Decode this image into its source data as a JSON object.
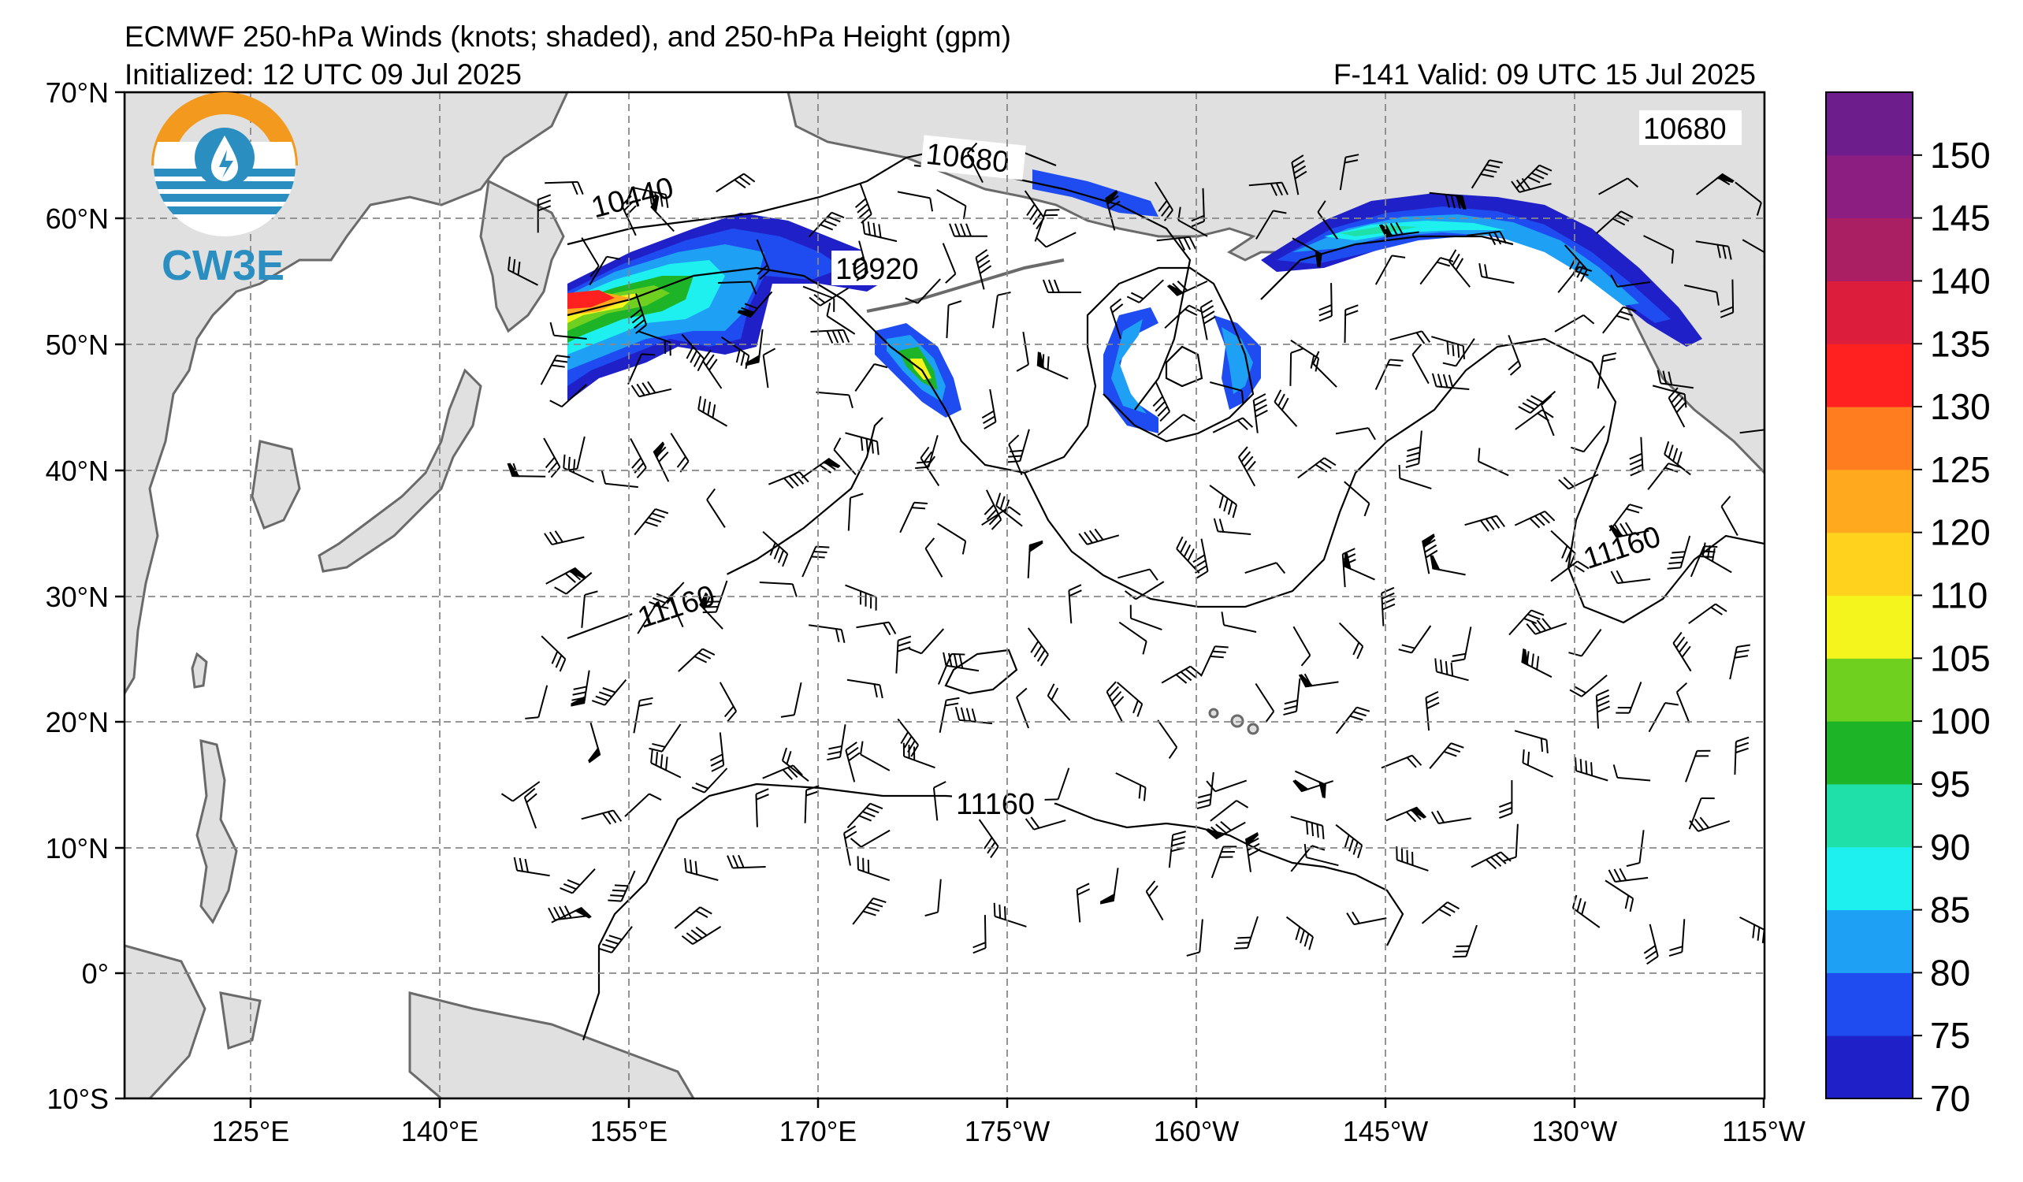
{
  "header": {
    "title": "ECMWF 250-hPa Winds (knots; shaded), and 250-hPa Height (gpm)",
    "initialized": "Initialized: 12 UTC 09 Jul 2025",
    "valid": "F-141  Valid: 09 UTC 15 Jul 2025"
  },
  "logo": {
    "text": "CW3E",
    "colors": {
      "orange": "#f39a1e",
      "blue": "#2a8fc0"
    }
  },
  "map": {
    "lat_labels": [
      "70°N",
      "60°N",
      "50°N",
      "40°N",
      "30°N",
      "20°N",
      "10°N",
      "0°",
      "10°S"
    ],
    "lon_labels": [
      "125°E",
      "140°E",
      "155°E",
      "170°E",
      "175°W",
      "160°W",
      "145°W",
      "130°W",
      "115°W"
    ],
    "contour_labels": [
      "10440",
      "10680",
      "10920",
      "10680",
      "11160",
      "11160",
      "11160"
    ],
    "land_color": "#e0e0e0",
    "grid_style": "dashed grey"
  },
  "colorbar": {
    "labels": [
      "150",
      "145",
      "140",
      "135",
      "130",
      "125",
      "120",
      "110",
      "105",
      "100",
      "95",
      "90",
      "85",
      "80",
      "75",
      "70"
    ],
    "colors": [
      "#2020c8",
      "#1e4cf0",
      "#1ea0f5",
      "#1ef0f0",
      "#1ee0a8",
      "#1eb428",
      "#70d020",
      "#f5f51e",
      "#ffd21e",
      "#ffaa1e",
      "#ff7d1e",
      "#ff2020",
      "#dc1e3c",
      "#aa1e64",
      "#8c1e82",
      "#6e1e8c"
    ]
  }
}
